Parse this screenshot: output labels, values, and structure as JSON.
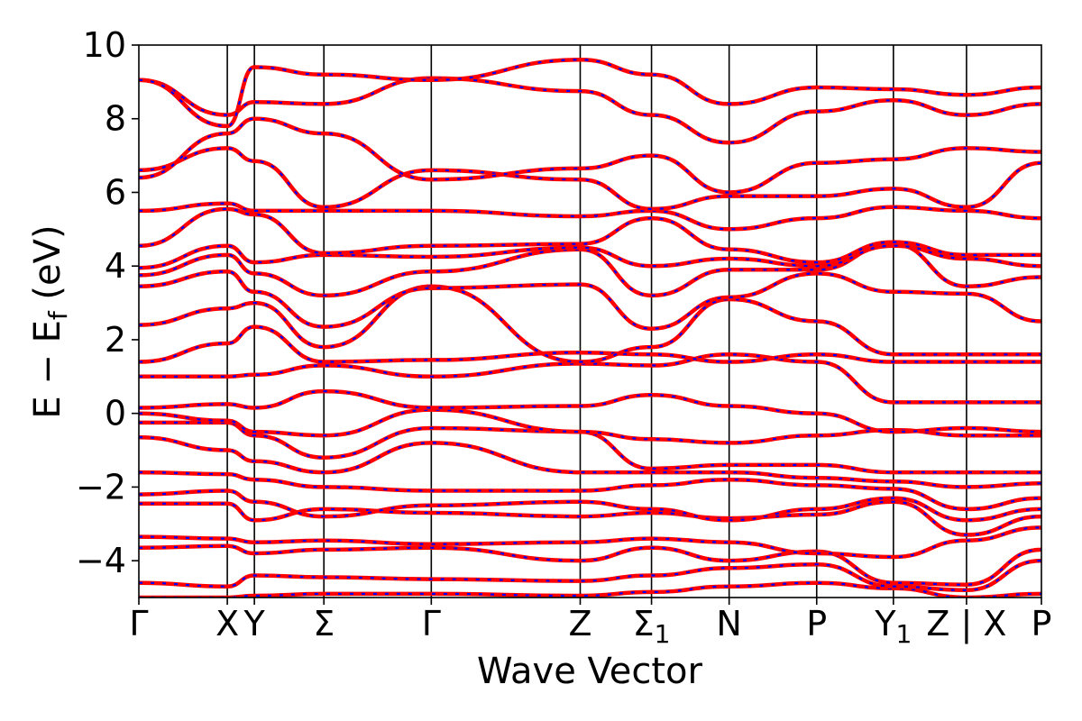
{
  "chart_data": {
    "type": "line",
    "title": "",
    "xlabel": "Wave Vector",
    "ylabel_parts": {
      "main": "E − E",
      "sub": "f",
      "unit": " (eV)"
    },
    "ylim": [
      -5,
      10
    ],
    "yticks": [
      {
        "value": -4,
        "label": "−4"
      },
      {
        "value": -2,
        "label": "−2"
      },
      {
        "value": 0,
        "label": "0"
      },
      {
        "value": 2,
        "label": "2"
      },
      {
        "value": 4,
        "label": "4"
      },
      {
        "value": 6,
        "label": "6"
      },
      {
        "value": 8,
        "label": "8"
      },
      {
        "value": 10,
        "label": "10"
      }
    ],
    "xlim": [
      0,
      10
    ],
    "kpoints": [
      {
        "label": "Γ",
        "x": 0.0
      },
      {
        "label": "X",
        "x": 0.98
      },
      {
        "label": "Y",
        "x": 1.28
      },
      {
        "label": "Σ",
        "x": 2.05
      },
      {
        "label": "Γ",
        "x": 3.24
      },
      {
        "label": "Z",
        "x": 4.89
      },
      {
        "label": "Σ",
        "sub": "1",
        "x": 5.68
      },
      {
        "label": "N",
        "x": 6.54
      },
      {
        "label": "P",
        "x": 7.51
      },
      {
        "label": "Y",
        "sub": "1",
        "x": 8.36
      },
      {
        "label": "Z | X",
        "x": 9.17
      },
      {
        "label": "P",
        "x": 10.0
      }
    ],
    "vlines": [
      0.98,
      1.28,
      2.05,
      3.24,
      4.89,
      5.68,
      6.54,
      7.51,
      8.36,
      9.17
    ],
    "series_colors": {
      "red": "#ff0000",
      "blue": "#0000ff"
    },
    "bands": [
      [
        -5.0,
        -5.0,
        -4.95,
        -4.9,
        -4.9,
        -4.95,
        -4.85,
        -4.7,
        -4.6,
        -4.75,
        -5.0,
        -4.9
      ],
      [
        -4.6,
        -4.7,
        -4.4,
        -4.45,
        -4.5,
        -4.55,
        -4.4,
        -4.2,
        -4.1,
        -4.7,
        -4.8,
        -4.0
      ],
      [
        -3.65,
        -3.6,
        -3.8,
        -3.7,
        -3.65,
        -4.0,
        -3.65,
        -4.0,
        -3.75,
        -4.6,
        -4.65,
        -3.7
      ],
      [
        -3.35,
        -3.4,
        -3.5,
        -3.45,
        -3.55,
        -3.5,
        -3.4,
        -3.5,
        -3.8,
        -3.9,
        -3.45,
        -3.1
      ],
      [
        -2.45,
        -2.45,
        -2.9,
        -2.6,
        -2.7,
        -2.8,
        -2.7,
        -2.85,
        -2.75,
        -2.4,
        -3.3,
        -2.8
      ],
      [
        -2.2,
        -2.1,
        -2.4,
        -2.8,
        -2.5,
        -2.4,
        -2.6,
        -2.9,
        -2.6,
        -2.3,
        -2.9,
        -2.6
      ],
      [
        -1.6,
        -1.65,
        -1.8,
        -2.0,
        -2.1,
        -2.1,
        -1.95,
        -1.8,
        -1.95,
        -2.05,
        -2.6,
        -2.3
      ],
      [
        -0.65,
        -1.0,
        -1.3,
        -1.6,
        -0.8,
        -1.6,
        -1.6,
        -1.6,
        -1.75,
        -1.85,
        -2.0,
        -1.9
      ],
      [
        -0.25,
        -0.25,
        -0.6,
        -1.2,
        -0.4,
        -0.5,
        -1.5,
        -1.4,
        -1.4,
        -1.6,
        -1.6,
        -1.6
      ],
      [
        0.0,
        -0.2,
        -0.5,
        -0.6,
        0.1,
        -0.5,
        -0.7,
        -0.8,
        -0.6,
        -0.45,
        -0.6,
        -0.6
      ],
      [
        0.15,
        0.25,
        0.15,
        0.6,
        0.15,
        0.2,
        0.5,
        0.2,
        0.0,
        -0.5,
        -0.4,
        -0.5
      ],
      [
        1.0,
        1.0,
        1.05,
        1.3,
        1.0,
        1.35,
        1.3,
        1.6,
        1.4,
        0.3,
        0.3,
        0.3
      ],
      [
        1.4,
        1.9,
        2.35,
        1.4,
        1.45,
        1.65,
        1.6,
        1.4,
        1.6,
        1.4,
        1.4,
        1.4
      ],
      [
        2.4,
        2.85,
        3.0,
        1.8,
        3.45,
        1.4,
        1.8,
        3.1,
        2.5,
        1.6,
        1.6,
        1.6
      ],
      [
        3.45,
        3.85,
        3.3,
        2.35,
        3.4,
        3.5,
        2.3,
        3.15,
        3.8,
        3.3,
        3.25,
        2.5
      ],
      [
        3.75,
        4.3,
        3.8,
        3.2,
        3.85,
        4.45,
        3.2,
        3.9,
        3.9,
        4.6,
        3.45,
        3.7
      ],
      [
        3.95,
        4.55,
        4.1,
        4.3,
        4.25,
        4.5,
        4.0,
        4.2,
        4.0,
        4.55,
        4.2,
        4.0
      ],
      [
        4.55,
        5.55,
        5.4,
        4.35,
        4.55,
        4.6,
        5.3,
        4.45,
        4.1,
        4.65,
        4.3,
        4.3
      ],
      [
        5.5,
        5.7,
        5.5,
        5.5,
        5.5,
        5.35,
        5.5,
        5.0,
        5.3,
        5.6,
        5.5,
        5.3
      ],
      [
        6.6,
        7.2,
        6.85,
        5.6,
        6.6,
        6.35,
        5.55,
        5.9,
        5.9,
        6.1,
        5.6,
        6.8
      ],
      [
        6.4,
        7.6,
        8.0,
        7.6,
        6.35,
        6.65,
        7.0,
        6.0,
        6.8,
        6.9,
        7.2,
        7.1
      ],
      [
        9.05,
        8.1,
        8.45,
        8.4,
        9.1,
        8.75,
        8.1,
        7.35,
        8.2,
        8.5,
        8.1,
        8.4
      ],
      [
        9.05,
        7.8,
        9.4,
        9.2,
        9.05,
        9.6,
        9.2,
        8.4,
        8.85,
        8.8,
        8.65,
        8.85
      ]
    ]
  }
}
